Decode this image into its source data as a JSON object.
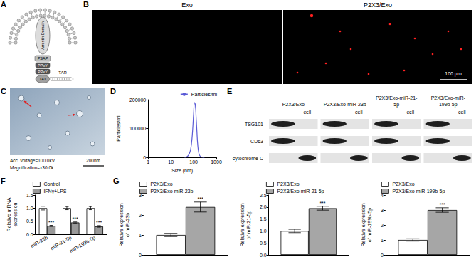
{
  "panel_labels": [
    "A",
    "B",
    "C",
    "D",
    "E",
    "F",
    "G"
  ],
  "diagram": {
    "domains": [
      "Arrestin Domain",
      "PSAP",
      "PPxY",
      "PPxY",
      "TAT"
    ],
    "rna": "TAR"
  },
  "fluorescence": {
    "titles": [
      "Exo",
      "P2X3/Exo"
    ],
    "scale_bar": "100 μm"
  },
  "tem": {
    "caption": [
      "Acc. voltage=100.0kV",
      "Magnification=x30.0k"
    ],
    "scale_bar": "200nm"
  },
  "western_blot": {
    "groups": [
      {
        "sample": "P2X3/Exo",
        "control": "cell"
      },
      {
        "sample": "P2X3/Exo-miR-23b",
        "control": "cell"
      },
      {
        "sample": "P2X3/Exo-miR-21-5p",
        "control": "cell"
      },
      {
        "sample": "P2X3/Exo-miR-199b-5p",
        "control": "cell"
      }
    ],
    "rows": [
      "TSG101",
      "CD63",
      "cytochrome C"
    ]
  },
  "chart_data": [
    {
      "type": "line",
      "xlabel": "Size (nm)",
      "ylabel": "Particles/ml",
      "log": "x",
      "grid": false,
      "legend": "top-right",
      "x": [
        40,
        50,
        60,
        70,
        80,
        90,
        100,
        110,
        120,
        130,
        140,
        150,
        170,
        200,
        250,
        300
      ],
      "series": [
        {
          "name": "Particles/ml",
          "color": "#5b5bd6",
          "values": [
            0,
            2000,
            8000,
            20000,
            45000,
            90000,
            150000,
            190000,
            180000,
            135000,
            90000,
            50000,
            15000,
            3000,
            500,
            0
          ]
        }
      ],
      "xlim": [
        1,
        1000
      ],
      "xticks": [
        1,
        10,
        100,
        1000
      ],
      "ylim": [
        0,
        200000
      ],
      "yticks": [
        0,
        100000,
        200000
      ]
    },
    {
      "type": "bar",
      "ylabel": "Relative mRNA expression",
      "grid": false,
      "legend": "top-left",
      "categories": [
        "miR-23b",
        "miR-21-5p",
        "miR-199b-5p"
      ],
      "series": [
        {
          "name": "Control",
          "color": "#ffffff",
          "values": [
            1.0,
            1.0,
            1.0
          ],
          "errors": [
            0.07,
            0.06,
            0.06
          ]
        },
        {
          "name": "IFNγ+LPS",
          "color": "#999999",
          "values": [
            0.32,
            0.45,
            0.3
          ],
          "errors": [
            0.02,
            0.02,
            0.03
          ],
          "annotation": "***"
        }
      ],
      "ylim": [
        0,
        1.5
      ],
      "yticks": [
        {
          "value": 0,
          "label": "0.0"
        },
        {
          "value": 0.5,
          "label": "0.5"
        },
        {
          "value": 1,
          "label": "1.0"
        },
        {
          "value": 1.5,
          "label": "1.5"
        }
      ]
    },
    {
      "type": "bar",
      "ylabel": "Relative expression of miR-23b",
      "grid": false,
      "legend": "top-left",
      "tick_labels": "y",
      "categories": [
        null
      ],
      "series": [
        {
          "name": "P2X3/Exo",
          "color": "#ffffff",
          "values": [
            1.0
          ],
          "errors": [
            0.08
          ]
        },
        {
          "name": "P2X3/Exo-miR-23b",
          "color": "#a6a6a6",
          "values": [
            2.4
          ],
          "errors": [
            0.25
          ],
          "annotation": "***"
        }
      ],
      "ylim": [
        0,
        3
      ],
      "yticks": [
        0,
        1,
        2,
        3
      ]
    },
    {
      "type": "bar",
      "ylabel": "Relative expression of miR-21-5p",
      "grid": false,
      "legend": "top-left",
      "tick_labels": "y",
      "categories": [
        null
      ],
      "series": [
        {
          "name": "P2X3/Exo",
          "color": "#ffffff",
          "values": [
            1.0
          ],
          "errors": [
            0.07
          ]
        },
        {
          "name": "P2X3/Exo-miR-21-5p",
          "color": "#a6a6a6",
          "values": [
            1.95
          ],
          "errors": [
            0.08
          ],
          "annotation": "***"
        }
      ],
      "ylim": [
        0,
        2.5
      ],
      "yticks": [
        {
          "value": 0,
          "label": "0.0"
        },
        {
          "value": 0.5,
          "label": "0.5"
        },
        {
          "value": 1,
          "label": "1.0"
        },
        {
          "value": 1.5,
          "label": "1.5"
        },
        {
          "value": 2,
          "label": "2.0"
        },
        {
          "value": 2.5,
          "label": "2.5"
        }
      ]
    },
    {
      "type": "bar",
      "ylabel": "Relative expression of miR-199b-5p",
      "grid": false,
      "legend": "top-left",
      "tick_labels": "y",
      "categories": [
        null
      ],
      "series": [
        {
          "name": "P2X3/Exo",
          "color": "#ffffff",
          "values": [
            1.0
          ],
          "errors": [
            0.08
          ]
        },
        {
          "name": "P2X3/Exo-miR-199b-5p",
          "color": "#a6a6a6",
          "values": [
            3.0
          ],
          "errors": [
            0.15
          ],
          "annotation": "***"
        }
      ],
      "ylim": [
        0,
        4
      ],
      "yticks": [
        0,
        1,
        2,
        3,
        4
      ]
    }
  ]
}
